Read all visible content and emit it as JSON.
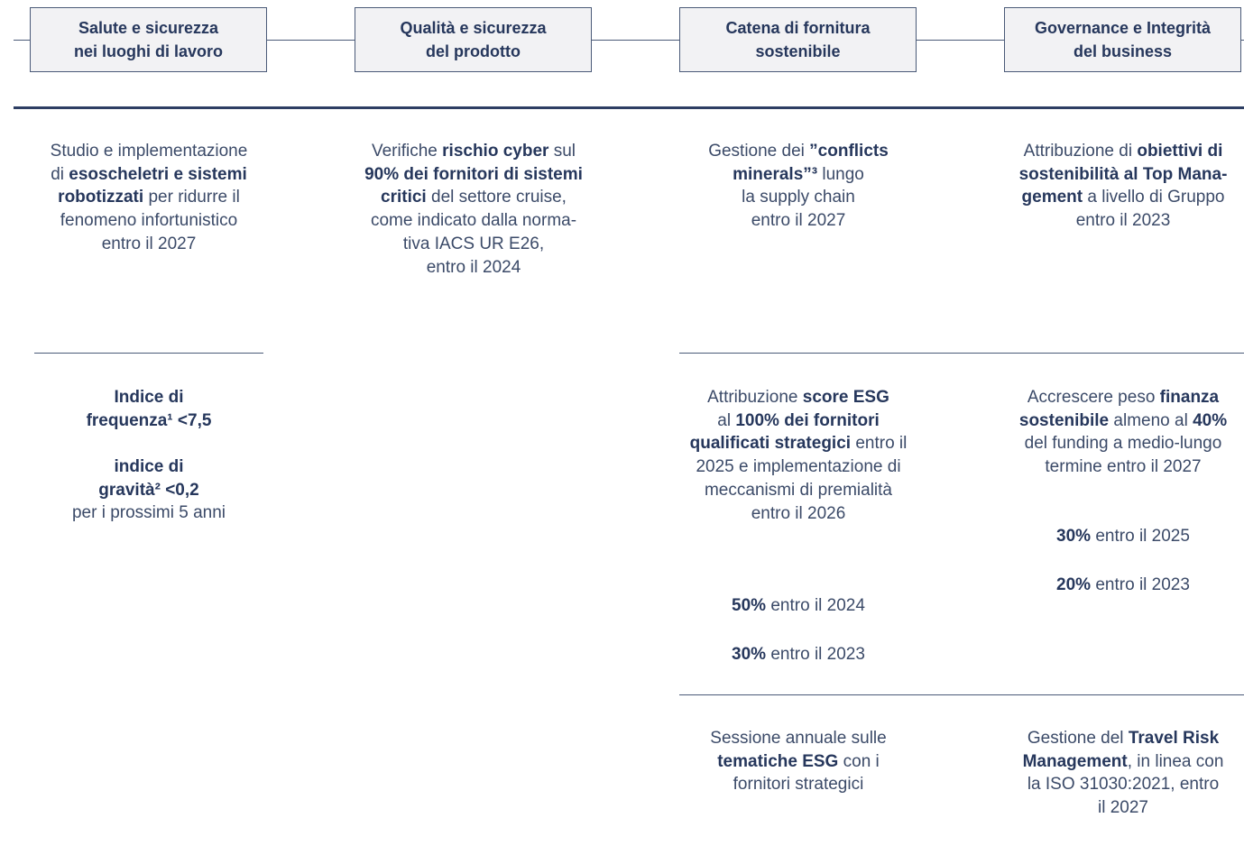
{
  "columns": [
    {
      "header": [
        "Salute e sicurezza",
        "nei luoghi di lavoro"
      ],
      "blocks": [
        [
          [
            {
              "text": "Studio e implementazione",
              "bold": false
            }
          ],
          [
            {
              "text": "di ",
              "bold": false
            },
            {
              "text": "esoscheletri e sistemi",
              "bold": true
            }
          ],
          [
            {
              "text": "robotizzati",
              "bold": true
            },
            {
              "text": " per ridurre il",
              "bold": false
            }
          ],
          [
            {
              "text": "fenomeno infortunistico",
              "bold": false
            }
          ],
          [
            {
              "text": "entro il 2027",
              "bold": false
            }
          ]
        ],
        [
          [
            {
              "text": "Indice di",
              "bold": true
            }
          ],
          [
            {
              "text": "frequenza¹ <7,5",
              "bold": true
            }
          ]
        ],
        [
          [
            {
              "text": "indice di",
              "bold": true
            }
          ],
          [
            {
              "text": "gravità² <0,2",
              "bold": true
            }
          ],
          [
            {
              "text": "per i prossimi 5 anni",
              "bold": false
            }
          ]
        ]
      ]
    },
    {
      "header": [
        "Qualità e sicurezza",
        "del prodotto"
      ],
      "blocks": [
        [
          [
            {
              "text": "Verifiche ",
              "bold": false
            },
            {
              "text": "rischio cyber",
              "bold": true
            },
            {
              "text": " sul",
              "bold": false
            }
          ],
          [
            {
              "text": "90% dei fornitori di sistemi",
              "bold": true
            }
          ],
          [
            {
              "text": "critici",
              "bold": true
            },
            {
              "text": " del settore cruise,",
              "bold": false
            }
          ],
          [
            {
              "text": "come indicato dalla norma-",
              "bold": false
            }
          ],
          [
            {
              "text": "tiva IACS UR E26,",
              "bold": false
            }
          ],
          [
            {
              "text": "entro il 2024",
              "bold": false
            }
          ]
        ]
      ]
    },
    {
      "header": [
        "Catena di fornitura",
        "sostenibile"
      ],
      "blocks": [
        [
          [
            {
              "text": "Gestione dei ",
              "bold": false
            },
            {
              "text": "”conflicts",
              "bold": true
            }
          ],
          [
            {
              "text": "minerals”³",
              "bold": true
            },
            {
              "text": " lungo",
              "bold": false
            }
          ],
          [
            {
              "text": "la supply chain",
              "bold": false
            }
          ],
          [
            {
              "text": "entro il 2027",
              "bold": false
            }
          ]
        ],
        [
          [
            {
              "text": "Attribuzione ",
              "bold": false
            },
            {
              "text": "score ESG",
              "bold": true
            }
          ],
          [
            {
              "text": "al ",
              "bold": false
            },
            {
              "text": "100% dei fornitori",
              "bold": true
            }
          ],
          [
            {
              "text": "qualificati strategici",
              "bold": true
            },
            {
              "text": " entro il",
              "bold": false
            }
          ],
          [
            {
              "text": "2025 e implementazione di",
              "bold": false
            }
          ],
          [
            {
              "text": "meccanismi di premialità",
              "bold": false
            }
          ],
          [
            {
              "text": "entro il 2026",
              "bold": false
            }
          ]
        ],
        [
          [
            {
              "text": "50%",
              "bold": true
            },
            {
              "text": " entro il 2024",
              "bold": false
            }
          ]
        ],
        [
          [
            {
              "text": "30%",
              "bold": true
            },
            {
              "text": " entro il 2023",
              "bold": false
            }
          ]
        ],
        [
          [
            {
              "text": "Sessione annuale sulle",
              "bold": false
            }
          ],
          [
            {
              "text": "tematiche ESG",
              "bold": true
            },
            {
              "text": " con i",
              "bold": false
            }
          ],
          [
            {
              "text": "fornitori strategici",
              "bold": false
            }
          ]
        ]
      ]
    },
    {
      "header": [
        "Governance e Integrità",
        "del business"
      ],
      "blocks": [
        [
          [
            {
              "text": "Attribuzione di ",
              "bold": false
            },
            {
              "text": "obiettivi di",
              "bold": true
            }
          ],
          [
            {
              "text": "sostenibilità al Top Mana-",
              "bold": true
            }
          ],
          [
            {
              "text": "gement",
              "bold": true
            },
            {
              "text": " a livello di Gruppo",
              "bold": false
            }
          ],
          [
            {
              "text": "entro il 2023",
              "bold": false
            }
          ]
        ],
        [
          [
            {
              "text": "Accrescere peso ",
              "bold": false
            },
            {
              "text": "finanza",
              "bold": true
            }
          ],
          [
            {
              "text": "sostenibile",
              "bold": true
            },
            {
              "text": " almeno al ",
              "bold": false
            },
            {
              "text": "40%",
              "bold": true
            }
          ],
          [
            {
              "text": "del funding a medio-lungo",
              "bold": false
            }
          ],
          [
            {
              "text": "termine entro il 2027",
              "bold": false
            }
          ]
        ],
        [
          [
            {
              "text": "30%",
              "bold": true
            },
            {
              "text": " entro il 2025",
              "bold": false
            }
          ]
        ],
        [
          [
            {
              "text": "20%",
              "bold": true
            },
            {
              "text": " entro il 2023",
              "bold": false
            }
          ]
        ],
        [
          [
            {
              "text": "Gestione del ",
              "bold": false
            },
            {
              "text": "Travel Risk",
              "bold": true
            }
          ],
          [
            {
              "text": "Management",
              "bold": true
            },
            {
              "text": ", in linea con",
              "bold": false
            }
          ],
          [
            {
              "text": "la ISO 31030:2021, entro",
              "bold": false
            }
          ],
          [
            {
              "text": "il 2027",
              "bold": false
            }
          ]
        ]
      ]
    }
  ]
}
